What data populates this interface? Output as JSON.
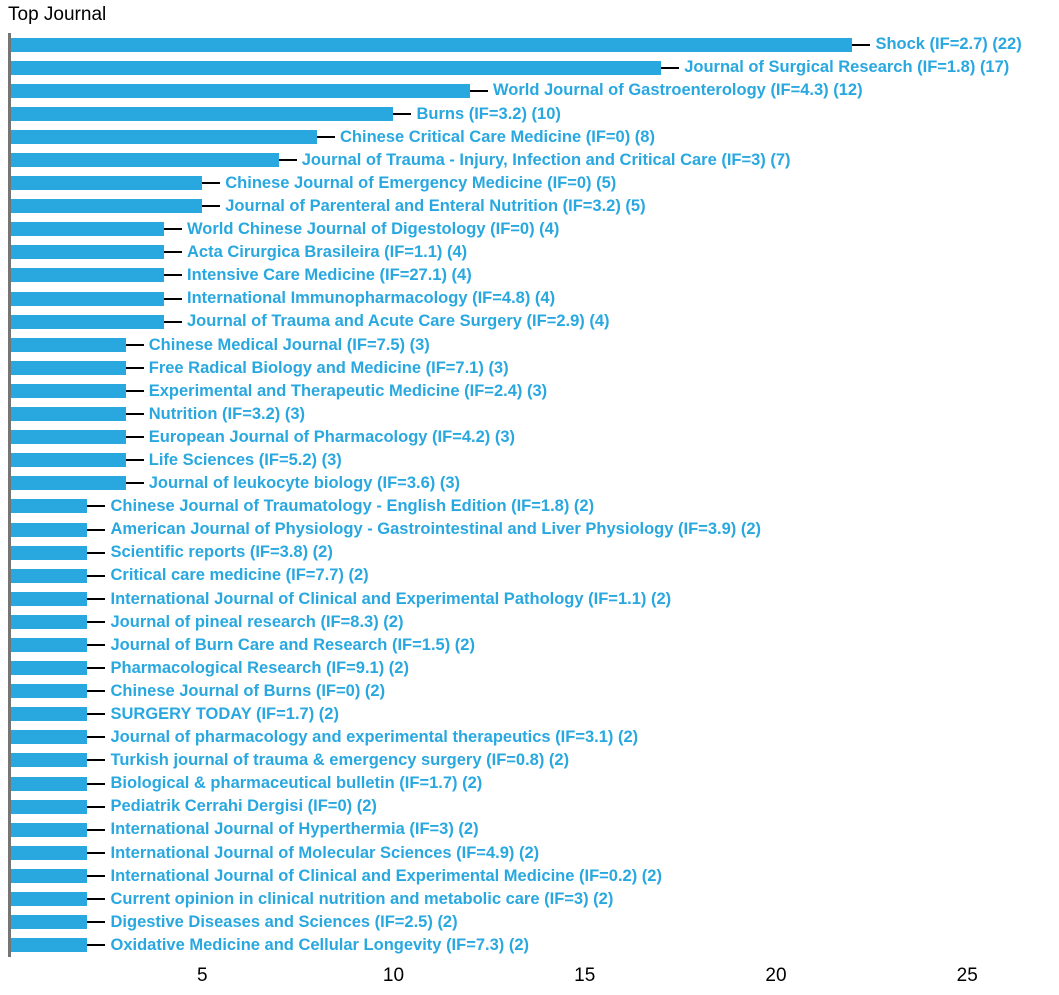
{
  "chart_data": {
    "type": "bar",
    "orientation": "horizontal",
    "title": "Top Journal",
    "xlabel": "",
    "ylabel": "",
    "xlim": [
      0,
      27.4
    ],
    "xticks": [
      5,
      10,
      15,
      20,
      25
    ],
    "grid": false,
    "legend": "none",
    "bar_color": "#29a8e0",
    "label_color": "#29a8e0",
    "items": [
      {
        "label": "Shock (IF=2.7) (22)",
        "value": 22
      },
      {
        "label": "Journal of Surgical Research (IF=1.8) (17)",
        "value": 17
      },
      {
        "label": "World Journal of Gastroenterology (IF=4.3) (12)",
        "value": 12
      },
      {
        "label": "Burns (IF=3.2) (10)",
        "value": 10
      },
      {
        "label": "Chinese Critical Care Medicine (IF=0) (8)",
        "value": 8
      },
      {
        "label": "Journal of Trauma - Injury, Infection and Critical Care (IF=3) (7)",
        "value": 7
      },
      {
        "label": "Chinese Journal of Emergency Medicine (IF=0) (5)",
        "value": 5
      },
      {
        "label": "Journal of Parenteral and Enteral Nutrition (IF=3.2) (5)",
        "value": 5
      },
      {
        "label": "World Chinese Journal of Digestology (IF=0) (4)",
        "value": 4
      },
      {
        "label": "Acta Cirurgica Brasileira (IF=1.1) (4)",
        "value": 4
      },
      {
        "label": "Intensive Care Medicine (IF=27.1) (4)",
        "value": 4
      },
      {
        "label": "International Immunopharmacology (IF=4.8) (4)",
        "value": 4
      },
      {
        "label": "Journal of Trauma and Acute Care Surgery (IF=2.9) (4)",
        "value": 4
      },
      {
        "label": "Chinese Medical Journal (IF=7.5) (3)",
        "value": 3
      },
      {
        "label": "Free Radical Biology and Medicine (IF=7.1) (3)",
        "value": 3
      },
      {
        "label": "Experimental and Therapeutic Medicine (IF=2.4) (3)",
        "value": 3
      },
      {
        "label": "Nutrition (IF=3.2) (3)",
        "value": 3
      },
      {
        "label": "European Journal of Pharmacology (IF=4.2) (3)",
        "value": 3
      },
      {
        "label": "Life Sciences (IF=5.2) (3)",
        "value": 3
      },
      {
        "label": "Journal of leukocyte biology (IF=3.6) (3)",
        "value": 3
      },
      {
        "label": "Chinese Journal of Traumatology - English Edition (IF=1.8) (2)",
        "value": 2
      },
      {
        "label": "American Journal of Physiology - Gastrointestinal and Liver Physiology (IF=3.9) (2)",
        "value": 2
      },
      {
        "label": "Scientific reports (IF=3.8) (2)",
        "value": 2
      },
      {
        "label": "Critical care medicine (IF=7.7) (2)",
        "value": 2
      },
      {
        "label": "International Journal of Clinical and Experimental Pathology (IF=1.1) (2)",
        "value": 2
      },
      {
        "label": "Journal of pineal research (IF=8.3) (2)",
        "value": 2
      },
      {
        "label": "Journal of Burn Care and Research (IF=1.5) (2)",
        "value": 2
      },
      {
        "label": "Pharmacological Research (IF=9.1) (2)",
        "value": 2
      },
      {
        "label": "Chinese Journal of Burns (IF=0) (2)",
        "value": 2
      },
      {
        "label": "SURGERY TODAY (IF=1.7) (2)",
        "value": 2
      },
      {
        "label": "Journal of pharmacology and experimental therapeutics (IF=3.1) (2)",
        "value": 2
      },
      {
        "label": "Turkish journal of trauma & emergency surgery (IF=0.8) (2)",
        "value": 2
      },
      {
        "label": "Biological & pharmaceutical bulletin (IF=1.7) (2)",
        "value": 2
      },
      {
        "label": "Pediatrik Cerrahi Dergisi (IF=0) (2)",
        "value": 2
      },
      {
        "label": "International Journal of Hyperthermia (IF=3) (2)",
        "value": 2
      },
      {
        "label": "International Journal of Molecular Sciences (IF=4.9) (2)",
        "value": 2
      },
      {
        "label": "International Journal of Clinical and Experimental Medicine (IF=0.2) (2)",
        "value": 2
      },
      {
        "label": "Current opinion in clinical nutrition and metabolic care (IF=3) (2)",
        "value": 2
      },
      {
        "label": "Digestive Diseases and Sciences (IF=2.5) (2)",
        "value": 2
      },
      {
        "label": "Oxidative Medicine and Cellular Longevity (IF=7.3) (2)",
        "value": 2
      }
    ]
  }
}
